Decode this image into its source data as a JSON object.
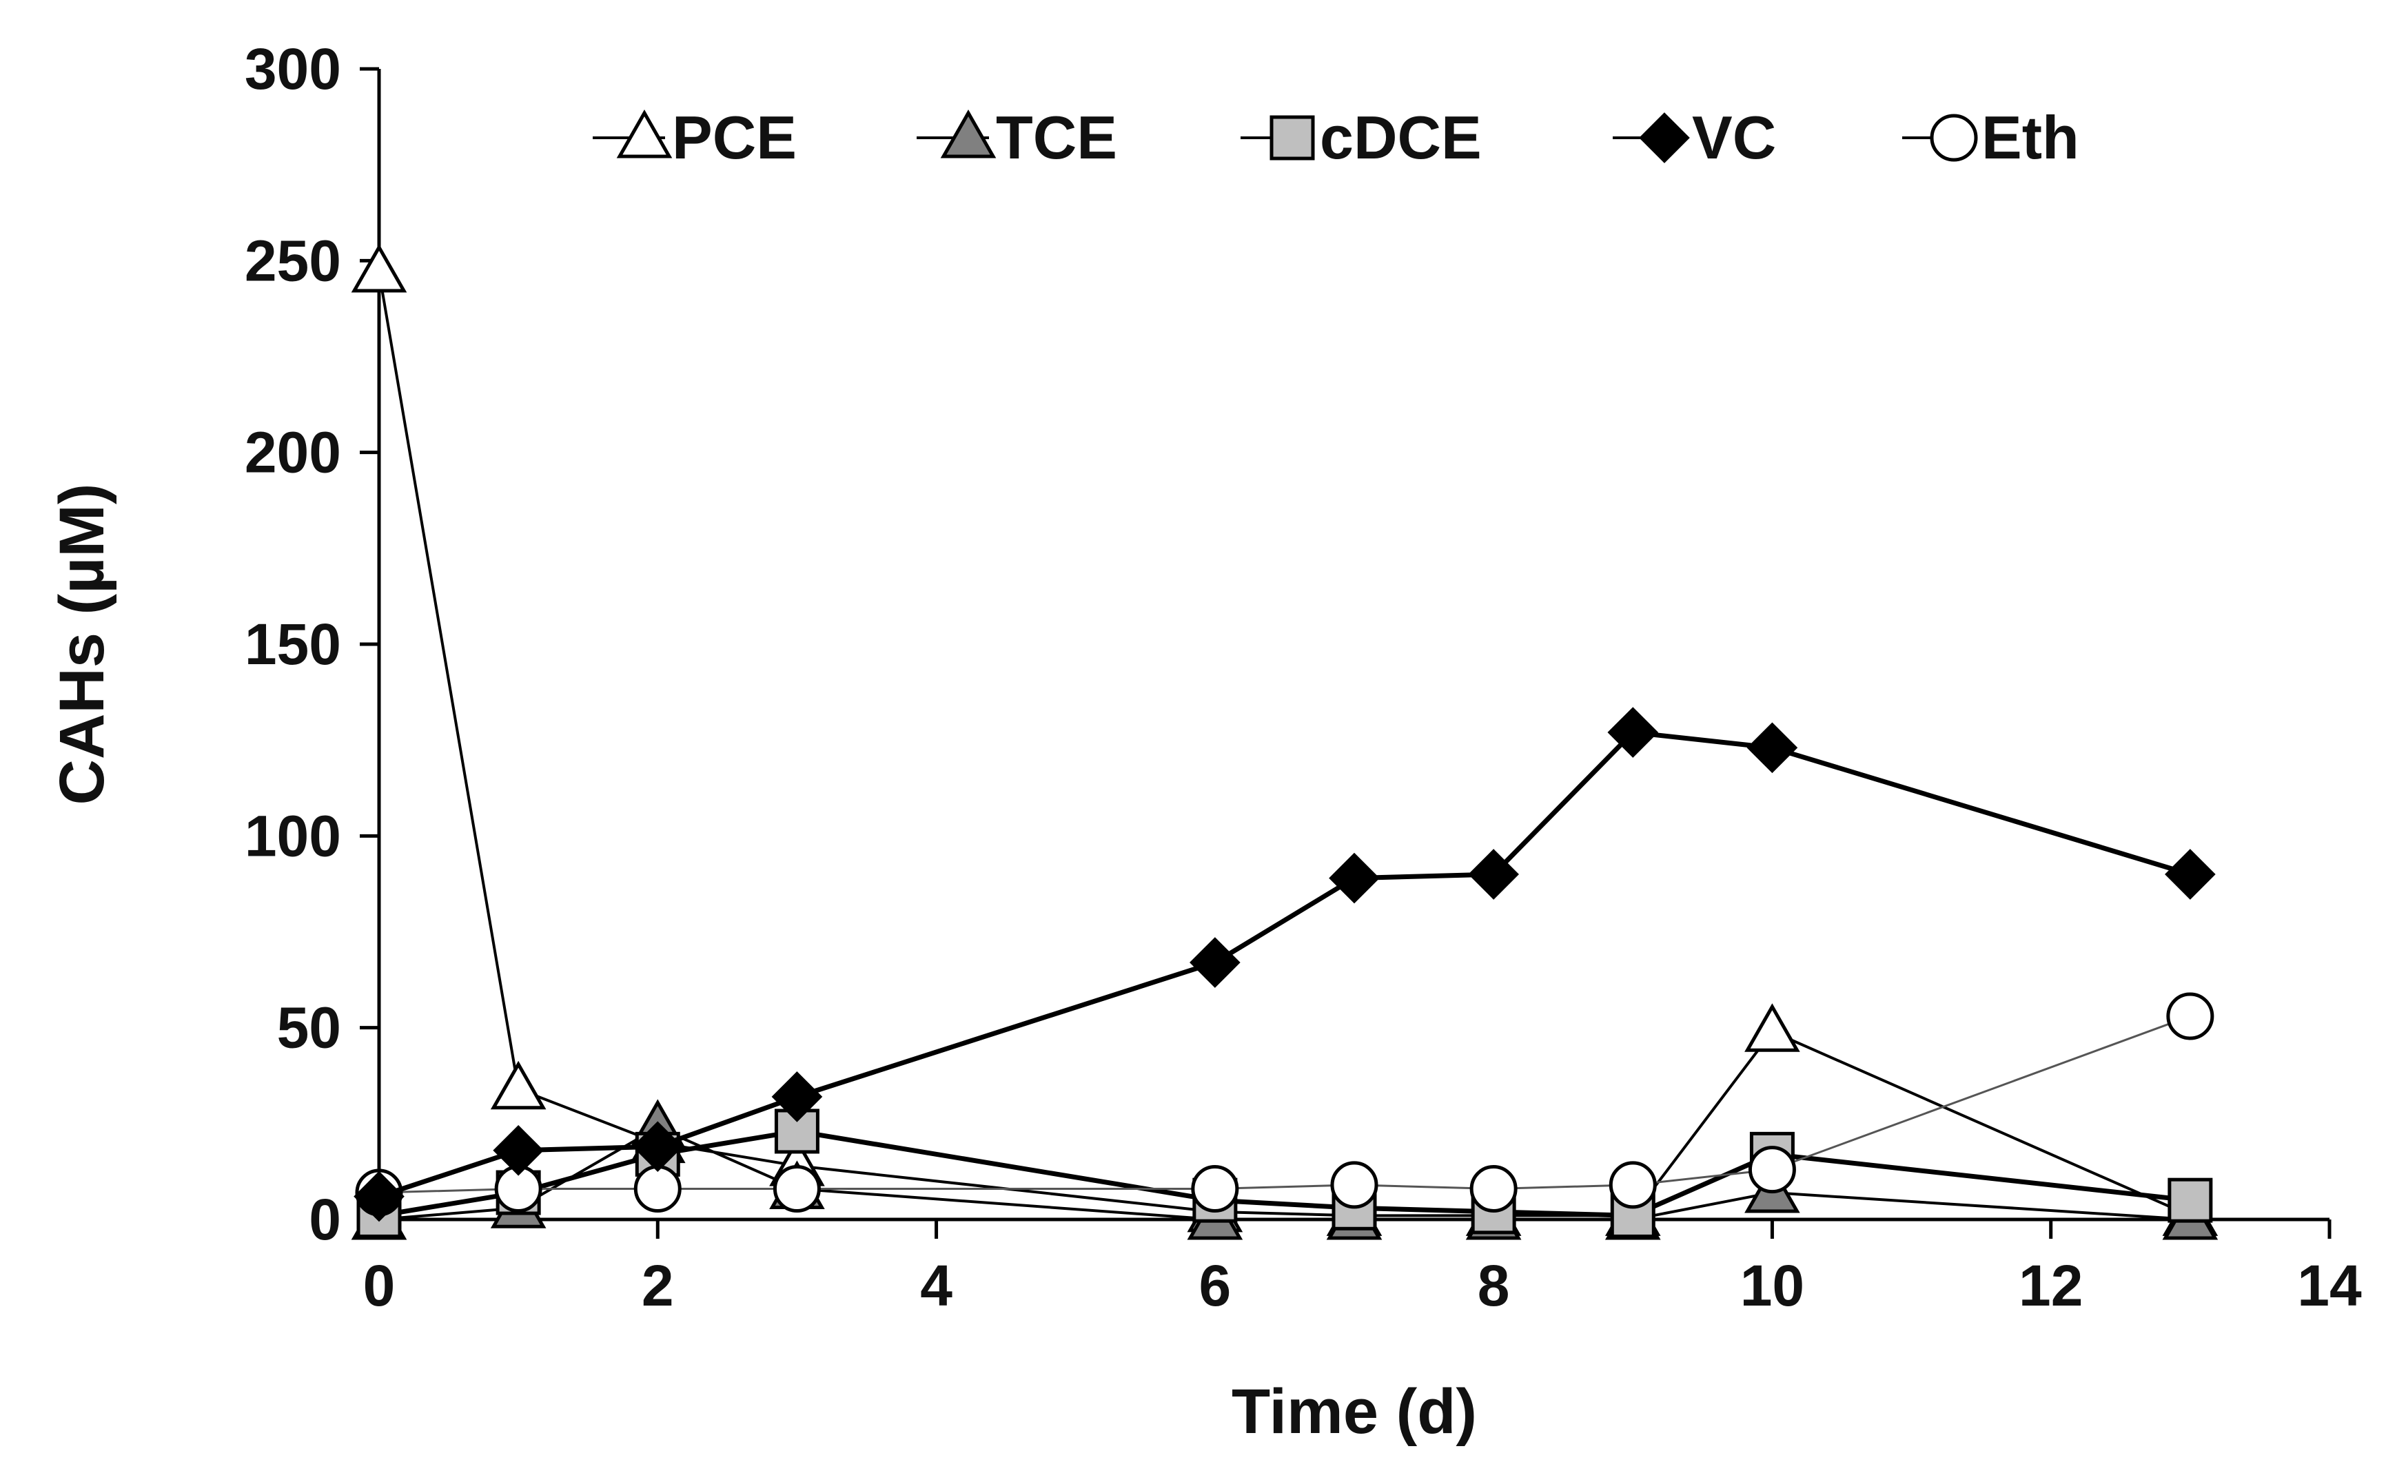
{
  "chart_data": {
    "type": "line",
    "title": "",
    "xlabel": "Time (d)",
    "ylabel": "CAHs (µM)",
    "xlim": [
      0,
      14
    ],
    "ylim": [
      0,
      300
    ],
    "xticks": [
      0,
      2,
      4,
      6,
      8,
      10,
      12,
      14
    ],
    "yticks": [
      0,
      50,
      100,
      150,
      200,
      250,
      300
    ],
    "grid": false,
    "legend_position": "top",
    "series": [
      {
        "name": "PCE",
        "marker": "triangle",
        "fill": "#ffffff",
        "x": [
          0,
          1,
          2,
          3,
          6,
          7,
          8,
          9,
          10,
          13
        ],
        "values": [
          247,
          34,
          20,
          14,
          2,
          1,
          1,
          1,
          49,
          1
        ]
      },
      {
        "name": "TCE",
        "marker": "triangle",
        "fill": "#808080",
        "x": [
          0,
          1,
          2,
          3,
          6,
          7,
          8,
          9,
          10,
          13
        ],
        "values": [
          0,
          3,
          24,
          8,
          0,
          0,
          0,
          0,
          7,
          0
        ]
      },
      {
        "name": "cDCE",
        "marker": "square",
        "fill": "#bfbfbf",
        "x": [
          0,
          1,
          2,
          3,
          6,
          7,
          8,
          9,
          10,
          13
        ],
        "values": [
          1,
          7,
          17,
          23,
          5,
          3,
          2,
          1,
          17,
          5
        ]
      },
      {
        "name": "VC",
        "marker": "diamond",
        "fill": "#000000",
        "x": [
          0,
          1,
          2,
          3,
          6,
          7,
          8,
          9,
          10,
          13
        ],
        "values": [
          6,
          18,
          19,
          32,
          67,
          89,
          90,
          127,
          123,
          90
        ]
      },
      {
        "name": "Eth",
        "marker": "circle",
        "fill": "#ffffff",
        "x": [
          0,
          1,
          2,
          3,
          6,
          7,
          8,
          9,
          10,
          13
        ],
        "values": [
          7,
          8,
          8,
          8,
          8,
          9,
          8,
          9,
          13,
          53
        ]
      }
    ]
  }
}
